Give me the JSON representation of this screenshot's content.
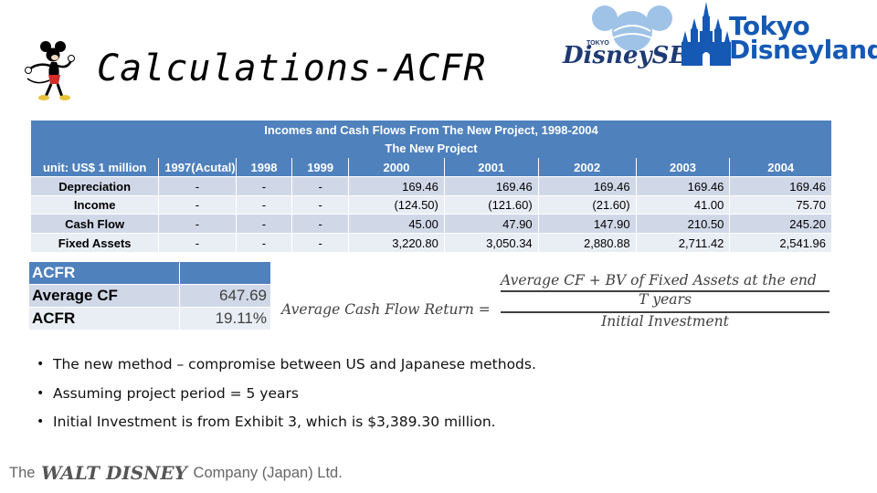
{
  "header": {
    "title": "Calculations-ACFR",
    "logos": {
      "tokyo_disneysea": {
        "small_text": "TOKYO",
        "word": "DisneySEA"
      },
      "tokyo_disneyland": {
        "line1": "Tokyo",
        "line2": "Disneyland"
      }
    },
    "colors": {
      "accent": "#4f81bd",
      "row_dark": "#d0d8e8",
      "row_light": "#e9edf4",
      "logo_blue": "#1559b5"
    }
  },
  "main_table": {
    "title": "Incomes and Cash Flows From The New Project, 1998-2004",
    "subtitle": "The New Project",
    "columns": [
      "unit: US$ 1 million",
      "1997(Acutal)",
      "1998",
      "1999",
      "2000",
      "2001",
      "2002",
      "2003",
      "2004"
    ],
    "rows": [
      {
        "label": "Depreciation",
        "cells": [
          "-",
          "-",
          "-",
          "169.46",
          "169.46",
          "169.46",
          "169.46",
          "169.46"
        ]
      },
      {
        "label": "Income",
        "cells": [
          "-",
          "-",
          "-",
          "(124.50)",
          "(121.60)",
          "(21.60)",
          "41.00",
          "75.70"
        ]
      },
      {
        "label": "Cash Flow",
        "cells": [
          "-",
          "-",
          "-",
          "45.00",
          "47.90",
          "147.90",
          "210.50",
          "245.20"
        ]
      },
      {
        "label": "Fixed Assets",
        "cells": [
          "-",
          "-",
          "-",
          "3,220.80",
          "3,050.34",
          "2,880.88",
          "2,711.42",
          "2,541.96"
        ]
      }
    ]
  },
  "acfr_table": {
    "header": "ACFR",
    "rows": [
      {
        "label": "Average CF",
        "value": "647.69"
      },
      {
        "label": "ACFR",
        "value": "19.11%"
      }
    ]
  },
  "formula": {
    "lhs": "Average Cash Flow Return =",
    "numerator": "Average CF + BV of Fixed Assets at the end",
    "numerator_divisor": "T years",
    "denominator": "Initial Investment"
  },
  "bullets": [
    "The new method – compromise between US and Japanese methods.",
    "Assuming project period = 5 years",
    "Initial Investment is from Exhibit 3, which is $3,389.30 million."
  ],
  "footer": {
    "pre": "The",
    "brand": "WALT DISNEY",
    "post": "Company (Japan) Ltd."
  }
}
